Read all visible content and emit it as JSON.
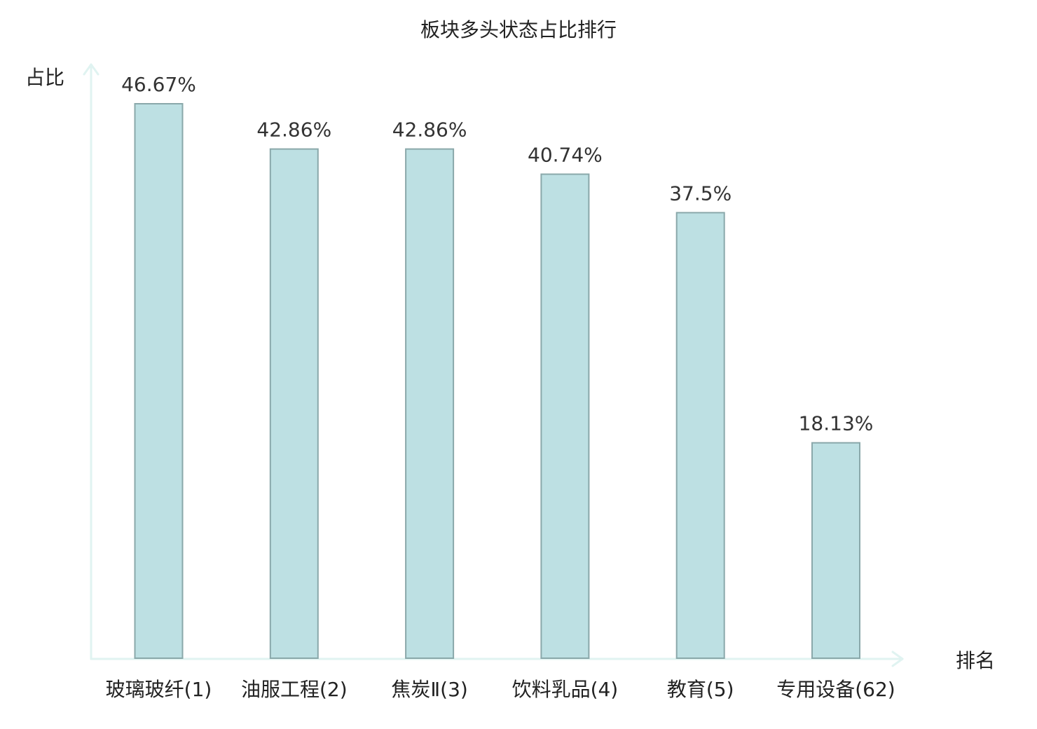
{
  "chart_data": {
    "type": "bar",
    "title": "板块多头状态占比排行",
    "xlabel": "排名",
    "ylabel": "占比",
    "ylim": [
      0,
      50
    ],
    "grid": false,
    "categories": [
      "玻璃玻纤(1)",
      "油服工程(2)",
      "焦炭Ⅱ(3)",
      "饮料乳品(4)",
      "教育(5)",
      "专用设备(62)"
    ],
    "values": [
      46.67,
      42.86,
      42.86,
      40.74,
      37.5,
      18.13
    ],
    "value_labels": [
      "46.67%",
      "42.86%",
      "42.86%",
      "40.74%",
      "37.5%",
      "18.13%"
    ],
    "highlight_index": 5
  },
  "colors": {
    "bar_fill": "#bde0e3",
    "bar_stroke": "#8aa8aa",
    "axis": "#e0f3f1",
    "text": "#222222",
    "value_text": "#333333",
    "highlight": "#e32b2b"
  }
}
